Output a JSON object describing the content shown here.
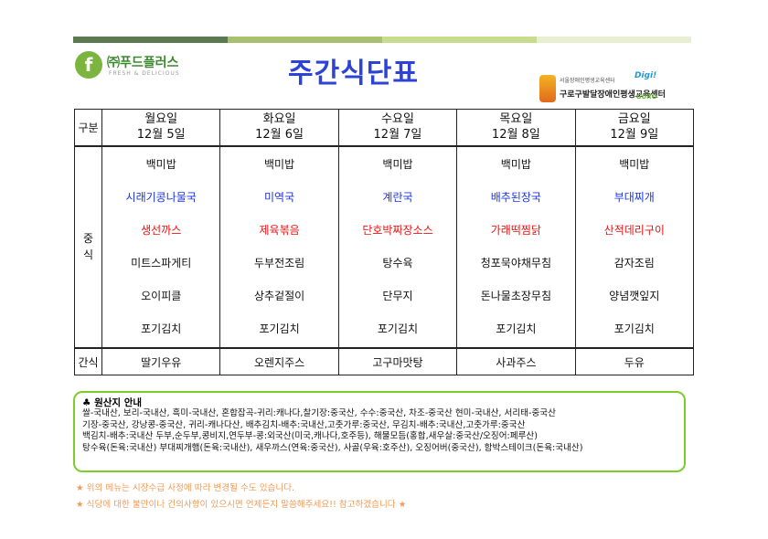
{
  "colors": {
    "title": "#2d43d6",
    "blue_dish": "#1a35e8",
    "red_dish": "#ee1111",
    "border_green": "#7ccd2a",
    "note": "#f39a55",
    "topbar": [
      "#5a7a52",
      "#a8c070",
      "#c8dc90",
      "#e6efd0"
    ]
  },
  "company": {
    "name": "㈜푸드플러스",
    "tagline": "FRESH & DELICIOUS",
    "icon": "leaf-f-icon"
  },
  "title": "주간식단표",
  "center": {
    "small": "서울장애인평생교육센터",
    "name": "구로구발달장애인평생교육센터",
    "digi": "Digi!",
    "guro": "GURO"
  },
  "table": {
    "corner_label": "구분",
    "main_label": [
      "중",
      "식"
    ],
    "snack_label": "간식",
    "days": [
      {
        "day": "월요일",
        "date": "12월 5일",
        "dishes": [
          "백미밥",
          "시래기콩나물국",
          "생선까스",
          "미트스파게티",
          "오이피클",
          "포기김치"
        ],
        "snack": "딸기우유"
      },
      {
        "day": "화요일",
        "date": "12월 6일",
        "dishes": [
          "백미밥",
          "미역국",
          "제육볶음",
          "두부전조림",
          "상추겉절이",
          "포기김치"
        ],
        "snack": "오렌지주스"
      },
      {
        "day": "수요일",
        "date": "12월 7일",
        "dishes": [
          "백미밥",
          "계란국",
          "단호박짜장소스",
          "탕수육",
          "단무지",
          "포기김치"
        ],
        "snack": "고구마맛탕"
      },
      {
        "day": "목요일",
        "date": "12월 8일",
        "dishes": [
          "백미밥",
          "배추된장국",
          "가래떡찜닭",
          "청포묵야채무침",
          "돈나물초장무침",
          "포기김치"
        ],
        "snack": "사과주스"
      },
      {
        "day": "금요일",
        "date": "12월 9일",
        "dishes": [
          "백미밥",
          "부대찌개",
          "산적데리구이",
          "감자조림",
          "양념깻잎지",
          "포기김치"
        ],
        "snack": "두유"
      }
    ]
  },
  "origin": {
    "icon": "club-icon",
    "title": "♣ 원산지 안내",
    "lines": [
      "쌀-국내산, 보리-국내산, 흑미-국내산, 혼합잡곡-귀리:캐나다,찰기장:중국산, 수수:중국산, 차조-중국산 현미-국내산, 서리태-중국산",
      "기장-중국산, 강낭콩-중국산, 귀리-캐나다산, 배추김치-배추:국내산,고춧가루:중국산, 무김치-배추:국내산,고춧가루:중국산",
      "백김치-배추:국내산 두부,순두부,콩비지,연두부-콩:외국산(미국,캐나다,호주등), 해물모듬(홍합,새우살:중국산/오징어:페루산)",
      "탕수육(돈육:국내산) 부대찌개햄(돈육:국내산), 새우까스(연육:중국산), 사골(우육:호주산), 오징어버(중국산), 함박스테이크(돈육:국내산)"
    ]
  },
  "notes": [
    "위의 메뉴는 시장수급 사정에 따라 변경될 수도 있습니다.",
    "식당에 대한 불만이나 건의사항이 있으시면 언제든지 말씀해주세요!! 참고하겠습니다"
  ],
  "note_star": "★"
}
